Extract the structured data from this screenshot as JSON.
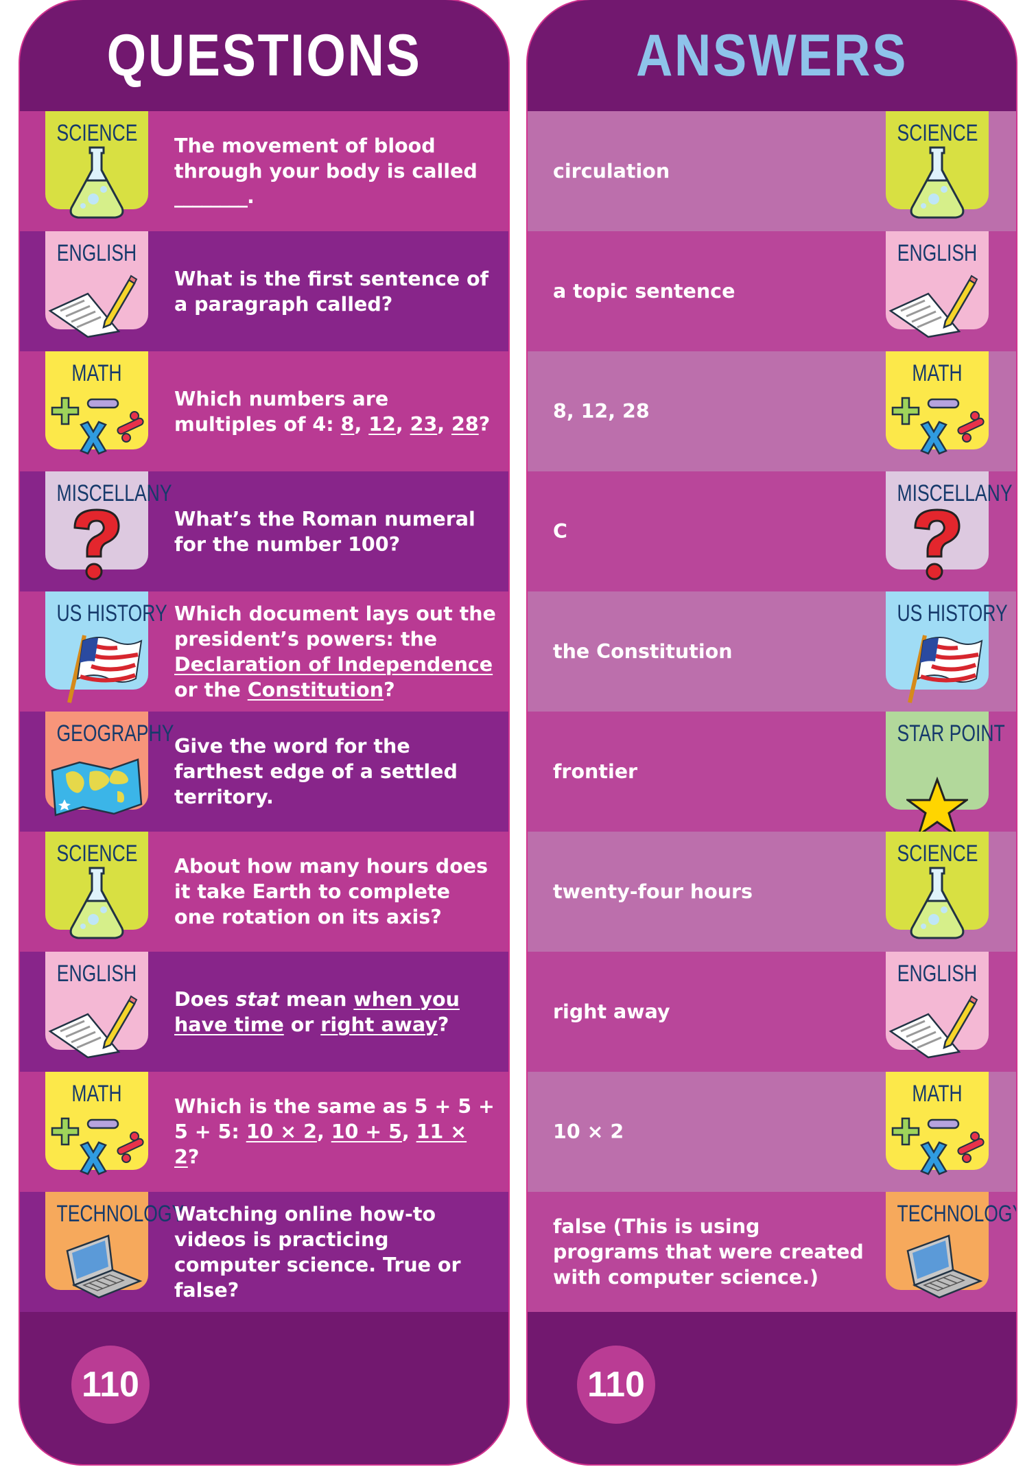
{
  "colors": {
    "header": "#72186f",
    "question_rows": [
      "#b93a93",
      "#88258a"
    ],
    "answer_rows": [
      "#bc6fac",
      "#b9469a"
    ],
    "page_circle": "#ba3c94",
    "answers_title": "#8ec3ea",
    "label_text": "#163a6b"
  },
  "categories": {
    "science": {
      "label": "SCIENCE",
      "color": "#d8e042",
      "icon": "flask-icon"
    },
    "english": {
      "label": "ENGLISH",
      "color": "#f4b8d4",
      "icon": "paper-pencil-icon"
    },
    "math": {
      "label": "MATH",
      "color": "#fce84a",
      "icon": "math-symbols-icon"
    },
    "miscellany": {
      "label": "MISCELLANY",
      "color": "#ddc9e0",
      "icon": "question-mark-icon"
    },
    "us_history": {
      "label": "US HISTORY",
      "color": "#a0dcf5",
      "icon": "us-flag-icon"
    },
    "geography": {
      "label": "GEOGRAPHY",
      "color": "#f7957a",
      "icon": "world-map-icon"
    },
    "star_point": {
      "label": "STAR POINT",
      "color": "#b2d89b",
      "icon": "star-icon"
    },
    "technology": {
      "label": "TECHNOLOGY",
      "color": "#f6a95c",
      "icon": "laptop-icon"
    }
  },
  "questions": {
    "title": "QUESTIONS",
    "page_number": "110",
    "items": [
      {
        "category": "science",
        "segments": [
          {
            "t": "The movement of blood through your body is called "
          },
          {
            "t": "________",
            "u": false
          },
          {
            "t": "."
          }
        ]
      },
      {
        "category": "english",
        "segments": [
          {
            "t": "What is the first sentence of a paragraph called?"
          }
        ]
      },
      {
        "category": "math",
        "segments": [
          {
            "t": "Which numbers are multiples of 4: "
          },
          {
            "t": "8",
            "u": true
          },
          {
            "t": ", "
          },
          {
            "t": "12",
            "u": true
          },
          {
            "t": ", "
          },
          {
            "t": "23",
            "u": true
          },
          {
            "t": ", "
          },
          {
            "t": "28",
            "u": true
          },
          {
            "t": "?"
          }
        ]
      },
      {
        "category": "miscellany",
        "segments": [
          {
            "t": "What’s the Roman numeral for the number 100?"
          }
        ]
      },
      {
        "category": "us_history",
        "segments": [
          {
            "t": "Which document lays out the president’s powers: the "
          },
          {
            "t": "Declaration of Independence",
            "u": true
          },
          {
            "t": " or the "
          },
          {
            "t": "Constitution",
            "u": true
          },
          {
            "t": "?"
          }
        ]
      },
      {
        "category": "geography",
        "segments": [
          {
            "t": "Give the word for the farthest edge of a settled territory."
          }
        ]
      },
      {
        "category": "science",
        "segments": [
          {
            "t": "About how many hours does it take Earth to complete one rotation on its axis?"
          }
        ]
      },
      {
        "category": "english",
        "segments": [
          {
            "t": "Does "
          },
          {
            "t": "stat",
            "i": true
          },
          {
            "t": " mean "
          },
          {
            "t": "when you have time",
            "u": true
          },
          {
            "t": " or "
          },
          {
            "t": "right away",
            "u": true
          },
          {
            "t": "?"
          }
        ]
      },
      {
        "category": "math",
        "segments": [
          {
            "t": "Which is the same as 5 + 5 + 5 + 5: "
          },
          {
            "t": "10 × 2",
            "u": true
          },
          {
            "t": ", "
          },
          {
            "t": "10 + 5",
            "u": true
          },
          {
            "t": ", "
          },
          {
            "t": "11 × 2",
            "u": true
          },
          {
            "t": "?"
          }
        ]
      },
      {
        "category": "technology",
        "segments": [
          {
            "t": "Watching online how-to videos is practicing computer science. True or false?"
          }
        ]
      }
    ]
  },
  "answers": {
    "title": "ANSWERS",
    "page_number": "110",
    "items": [
      {
        "category": "science",
        "text": "circulation"
      },
      {
        "category": "english",
        "text": "a topic sentence"
      },
      {
        "category": "math",
        "text": "8, 12, 28"
      },
      {
        "category": "miscellany",
        "text": "C"
      },
      {
        "category": "us_history",
        "text": "the Constitution"
      },
      {
        "category": "star_point",
        "text": "frontier"
      },
      {
        "category": "science",
        "text": "twenty-four hours"
      },
      {
        "category": "english",
        "text": "right away"
      },
      {
        "category": "math",
        "text": "10 × 2"
      },
      {
        "category": "technology",
        "text": "false (This is using programs that were created with computer science.)"
      }
    ]
  }
}
